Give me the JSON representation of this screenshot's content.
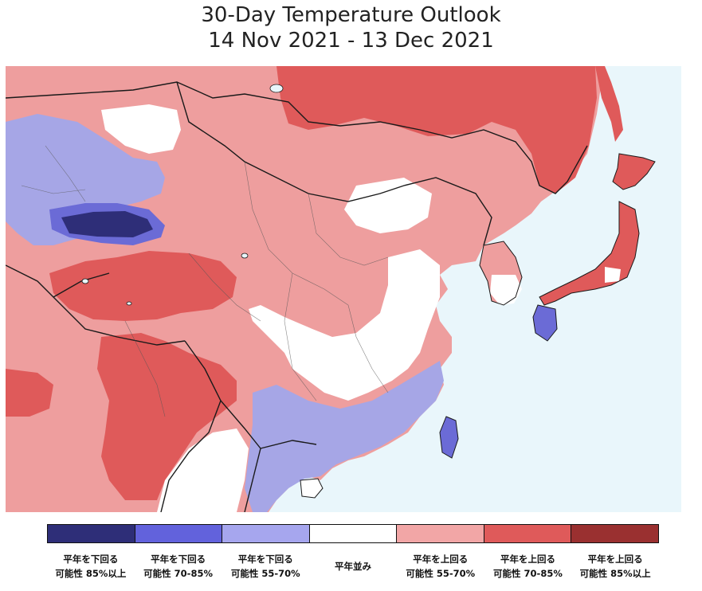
{
  "title": {
    "line1": "30-Day Temperature Outlook",
    "line2": "14 Nov 2021 - 13 Dec 2021"
  },
  "colors": {
    "ocean": "#e9f6fb",
    "normal": "#ffffff",
    "above_55_70": "#ee9e9e",
    "above_70_85": "#df5a5a",
    "above_85": "#963232",
    "below_55_70": "#a6a6e6",
    "below_70_85": "#6b6bd6",
    "below_85": "#2e2e78",
    "border": "#1a1a1a"
  },
  "legend": [
    {
      "line1": "平年を下回る",
      "line2": "可能性 85%以上",
      "color": "#2e2e78"
    },
    {
      "line1": "平年を下回る",
      "line2": "可能性 70-85%",
      "color": "#6262dc"
    },
    {
      "line1": "平年を下回る",
      "line2": "可能性 55-70%",
      "color": "#a6a6ee"
    },
    {
      "line1": "",
      "line2": "平年並み",
      "color": "#ffffff"
    },
    {
      "line1": "平年を上回る",
      "line2": "可能性 55-70%",
      "color": "#f2a6a6"
    },
    {
      "line1": "平年を上回る",
      "line2": "可能性 70-85%",
      "color": "#df5a5a"
    },
    {
      "line1": "平年を上回る",
      "line2": "可能性 85%以上",
      "color": "#9a3030"
    }
  ]
}
